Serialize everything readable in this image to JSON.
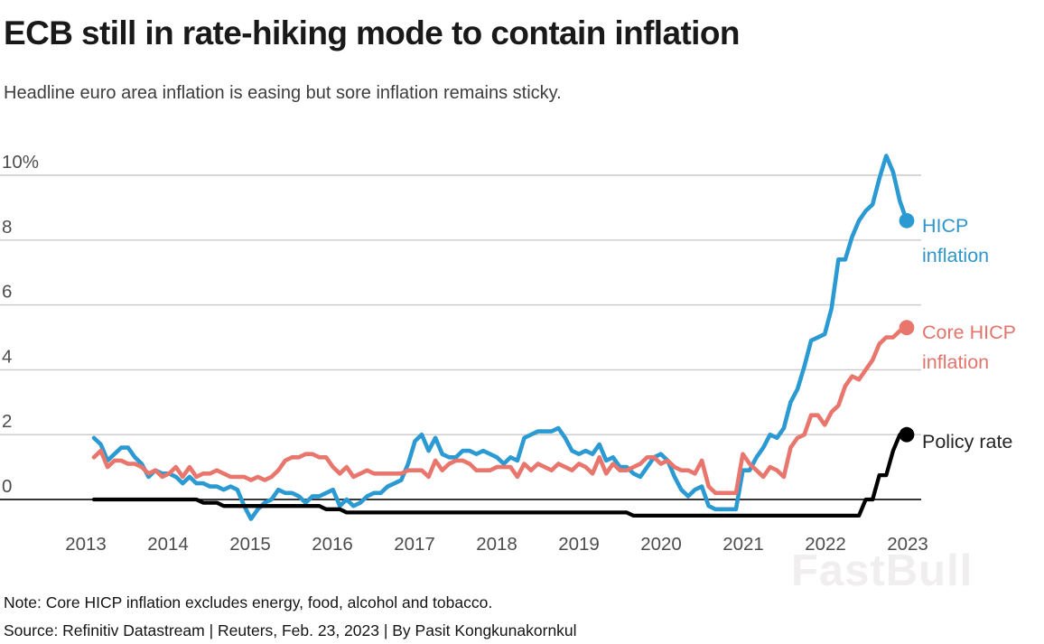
{
  "header": {
    "title": "ECB still in rate-hiking mode to contain inflation",
    "subtitle": "Headline euro area inflation is easing but sore inflation remains sticky."
  },
  "footer": {
    "note": "Note: Core HICP inflation excludes energy, food, alcohol and tobacco.",
    "source": "Source: Refinitiv Datastream | Reuters, Feb. 23, 2023 | By Pasit Kongkunakornkul"
  },
  "watermark": "FastBull",
  "legend": [
    {
      "line1": "HICP",
      "line2": "inflation",
      "color": "#3095c8"
    },
    {
      "line1": "Core HICP",
      "line2": "inflation",
      "color": "#e2746c"
    },
    {
      "line1": "Policy rate",
      "line2": "",
      "color": "#242424"
    }
  ],
  "chart_data": {
    "type": "line",
    "title": "ECB still in rate-hiking mode to contain inflation",
    "subtitle": "Headline euro area inflation is easing but sore inflation remains sticky.",
    "x_unit": "monthly, Feb 2013 to Jan 2023",
    "x_tick_labels": [
      "2013",
      "2014",
      "2015",
      "2016",
      "2017",
      "2018",
      "2019",
      "2020",
      "2021",
      "2022",
      "2023"
    ],
    "y_ticks": [
      {
        "value": 10,
        "label": "10%"
      },
      {
        "value": 8,
        "label": "8"
      },
      {
        "value": 6,
        "label": "6"
      },
      {
        "value": 4,
        "label": "4"
      },
      {
        "value": 2,
        "label": "2"
      },
      {
        "value": 0,
        "label": "0"
      }
    ],
    "ylim": [
      -0.75,
      11.0
    ],
    "grid": "horizontal gridlines only, zero axis darker",
    "legend_position": "right of plot at line ends, with end dots",
    "series": [
      {
        "name": "HICP inflation",
        "color": "#2b9ad3",
        "values": [
          1.9,
          1.7,
          1.2,
          1.4,
          1.6,
          1.6,
          1.3,
          1.1,
          0.7,
          0.9,
          0.8,
          0.8,
          0.7,
          0.5,
          0.7,
          0.5,
          0.5,
          0.4,
          0.4,
          0.3,
          0.4,
          0.3,
          -0.2,
          -0.6,
          -0.3,
          -0.1,
          0.0,
          0.3,
          0.2,
          0.2,
          0.1,
          -0.1,
          0.1,
          0.1,
          0.2,
          0.3,
          -0.2,
          0.0,
          -0.2,
          -0.1,
          0.1,
          0.2,
          0.2,
          0.4,
          0.5,
          0.6,
          1.1,
          1.8,
          2.0,
          1.5,
          1.9,
          1.4,
          1.3,
          1.3,
          1.5,
          1.5,
          1.4,
          1.5,
          1.4,
          1.3,
          1.1,
          1.3,
          1.2,
          1.9,
          2.0,
          2.1,
          2.1,
          2.1,
          2.2,
          1.9,
          1.5,
          1.4,
          1.5,
          1.4,
          1.7,
          1.2,
          1.3,
          1.0,
          1.0,
          0.8,
          0.7,
          1.0,
          1.3,
          1.4,
          1.2,
          0.7,
          0.3,
          0.1,
          0.3,
          0.4,
          -0.2,
          -0.3,
          -0.3,
          -0.3,
          -0.3,
          0.9,
          0.9,
          1.3,
          1.6,
          2.0,
          1.9,
          2.2,
          3.0,
          3.4,
          4.1,
          4.9,
          5.0,
          5.1,
          5.9,
          7.4,
          7.4,
          8.1,
          8.6,
          8.9,
          9.1,
          9.9,
          10.6,
          10.1,
          9.2,
          8.6
        ]
      },
      {
        "name": "Core HICP inflation",
        "color": "#e8766d",
        "values": [
          1.3,
          1.5,
          1.0,
          1.2,
          1.2,
          1.1,
          1.1,
          1.0,
          0.8,
          0.9,
          0.7,
          0.8,
          1.0,
          0.7,
          1.0,
          0.7,
          0.8,
          0.8,
          0.9,
          0.8,
          0.7,
          0.7,
          0.7,
          0.6,
          0.7,
          0.6,
          0.7,
          0.9,
          1.2,
          1.3,
          1.3,
          1.4,
          1.4,
          1.3,
          1.3,
          1.0,
          0.8,
          1.0,
          0.7,
          0.8,
          0.9,
          0.8,
          0.8,
          0.8,
          0.8,
          0.8,
          0.9,
          0.9,
          0.9,
          0.7,
          1.2,
          0.9,
          1.1,
          1.2,
          1.2,
          1.1,
          0.9,
          0.9,
          0.9,
          1.0,
          1.0,
          1.0,
          0.7,
          1.1,
          0.9,
          1.1,
          1.0,
          0.9,
          1.1,
          1.0,
          0.9,
          1.1,
          1.0,
          0.8,
          1.3,
          0.8,
          1.1,
          0.9,
          0.9,
          1.0,
          1.1,
          1.3,
          1.3,
          1.1,
          1.2,
          1.0,
          0.9,
          0.9,
          0.8,
          1.2,
          0.4,
          0.2,
          0.2,
          0.2,
          0.2,
          1.4,
          1.1,
          0.9,
          0.7,
          1.0,
          0.9,
          0.7,
          1.6,
          1.9,
          2.0,
          2.6,
          2.6,
          2.3,
          2.7,
          2.9,
          3.5,
          3.8,
          3.7,
          4.0,
          4.3,
          4.8,
          5.0,
          5.0,
          5.2,
          5.3
        ]
      },
      {
        "name": "Policy rate",
        "color": "#000000",
        "values": [
          0,
          0,
          0,
          0,
          0,
          0,
          0,
          0,
          0,
          0,
          0,
          0,
          0,
          0,
          0,
          0,
          -0.1,
          -0.1,
          -0.1,
          -0.2,
          -0.2,
          -0.2,
          -0.2,
          -0.2,
          -0.2,
          -0.2,
          -0.2,
          -0.2,
          -0.2,
          -0.2,
          -0.2,
          -0.2,
          -0.2,
          -0.2,
          -0.3,
          -0.3,
          -0.3,
          -0.4,
          -0.4,
          -0.4,
          -0.4,
          -0.4,
          -0.4,
          -0.4,
          -0.4,
          -0.4,
          -0.4,
          -0.4,
          -0.4,
          -0.4,
          -0.4,
          -0.4,
          -0.4,
          -0.4,
          -0.4,
          -0.4,
          -0.4,
          -0.4,
          -0.4,
          -0.4,
          -0.4,
          -0.4,
          -0.4,
          -0.4,
          -0.4,
          -0.4,
          -0.4,
          -0.4,
          -0.4,
          -0.4,
          -0.4,
          -0.4,
          -0.4,
          -0.4,
          -0.4,
          -0.4,
          -0.4,
          -0.4,
          -0.4,
          -0.5,
          -0.5,
          -0.5,
          -0.5,
          -0.5,
          -0.5,
          -0.5,
          -0.5,
          -0.5,
          -0.5,
          -0.5,
          -0.5,
          -0.5,
          -0.5,
          -0.5,
          -0.5,
          -0.5,
          -0.5,
          -0.5,
          -0.5,
          -0.5,
          -0.5,
          -0.5,
          -0.5,
          -0.5,
          -0.5,
          -0.5,
          -0.5,
          -0.5,
          -0.5,
          -0.5,
          -0.5,
          -0.5,
          -0.5,
          0.0,
          0.0,
          0.75,
          0.75,
          1.5,
          2.0,
          2.0
        ]
      }
    ]
  }
}
